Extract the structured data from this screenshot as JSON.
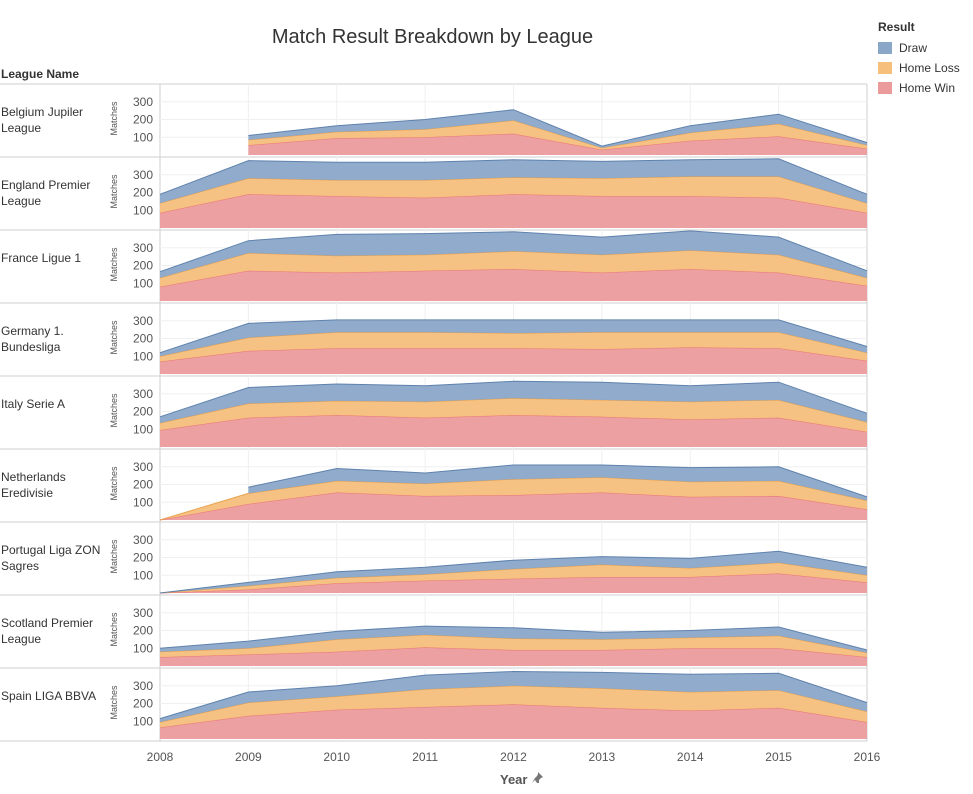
{
  "title": "Match Result Breakdown by League",
  "legend": {
    "title": "Result",
    "items": [
      {
        "label": "Draw",
        "color": "#8aa7c8"
      },
      {
        "label": "Home Loss",
        "color": "#f6bf7c"
      },
      {
        "label": "Home Win",
        "color": "#ec9b9d"
      }
    ]
  },
  "row_header": "League Name",
  "x_axis_title": "Year",
  "y_axis_label": "Matches",
  "chart_data": {
    "type": "area",
    "stacked": true,
    "x": [
      2008,
      2009,
      2010,
      2011,
      2012,
      2013,
      2014,
      2015,
      2016
    ],
    "ylim": [
      0,
      400
    ],
    "y_ticks": [
      100,
      200,
      300
    ],
    "series_order": [
      "Home Win",
      "Home Loss",
      "Draw"
    ],
    "panels": [
      {
        "league": "Belgium Jupiler League",
        "home_win": [
          null,
          55,
          95,
          100,
          120,
          30,
          80,
          105,
          35
        ],
        "home_loss": [
          null,
          30,
          35,
          45,
          75,
          10,
          45,
          70,
          20
        ],
        "draw": [
          null,
          25,
          35,
          55,
          60,
          10,
          40,
          55,
          15
        ]
      },
      {
        "league": "England Premier League",
        "home_win": [
          85,
          190,
          180,
          170,
          190,
          180,
          180,
          170,
          85
        ],
        "home_loss": [
          55,
          90,
          90,
          100,
          95,
          100,
          110,
          120,
          55
        ],
        "draw": [
          50,
          100,
          100,
          100,
          100,
          95,
          95,
          100,
          50
        ]
      },
      {
        "league": "France Ligue 1",
        "home_win": [
          80,
          170,
          160,
          170,
          180,
          160,
          180,
          160,
          85
        ],
        "home_loss": [
          50,
          100,
          95,
          90,
          100,
          100,
          105,
          100,
          45
        ],
        "draw": [
          35,
          70,
          120,
          120,
          110,
          100,
          110,
          100,
          40
        ]
      },
      {
        "league": "Germany 1. Bundesliga",
        "home_win": [
          70,
          130,
          145,
          145,
          145,
          140,
          150,
          145,
          75
        ],
        "home_loss": [
          30,
          75,
          90,
          90,
          85,
          95,
          85,
          90,
          45
        ],
        "draw": [
          20,
          80,
          70,
          70,
          75,
          70,
          70,
          70,
          35
        ]
      },
      {
        "league": "Italy Serie A",
        "home_win": [
          95,
          165,
          180,
          165,
          180,
          170,
          155,
          165,
          85
        ],
        "home_loss": [
          40,
          80,
          80,
          90,
          95,
          95,
          100,
          100,
          55
        ],
        "draw": [
          35,
          90,
          95,
          90,
          95,
          100,
          90,
          100,
          50
        ]
      },
      {
        "league": "Netherlands Eredivisie",
        "home_win": [
          0,
          90,
          155,
          135,
          140,
          155,
          130,
          135,
          60
        ],
        "home_loss": [
          0,
          60,
          65,
          70,
          90,
          85,
          85,
          85,
          50
        ],
        "draw": [
          null,
          35,
          70,
          60,
          80,
          70,
          80,
          80,
          20
        ]
      },
      {
        "league": "Portugal Liga ZON Sagres",
        "home_win": [
          0,
          20,
          55,
          70,
          80,
          90,
          90,
          110,
          60
        ],
        "home_loss": [
          0,
          20,
          30,
          35,
          55,
          70,
          50,
          60,
          40
        ],
        "draw": [
          0,
          20,
          35,
          40,
          50,
          45,
          55,
          65,
          45
        ]
      },
      {
        "league": "Scotland Premier League",
        "home_win": [
          50,
          65,
          80,
          105,
          90,
          90,
          100,
          100,
          50
        ],
        "home_loss": [
          30,
          35,
          70,
          70,
          65,
          60,
          60,
          70,
          25
        ],
        "draw": [
          20,
          40,
          45,
          50,
          60,
          40,
          40,
          50,
          15
        ]
      },
      {
        "league": "Spain LIGA BBVA",
        "home_win": [
          65,
          130,
          165,
          180,
          195,
          175,
          160,
          175,
          95
        ],
        "home_loss": [
          30,
          75,
          75,
          100,
          105,
          110,
          105,
          100,
          60
        ],
        "draw": [
          20,
          60,
          60,
          80,
          80,
          90,
          100,
          95,
          50
        ]
      }
    ]
  }
}
